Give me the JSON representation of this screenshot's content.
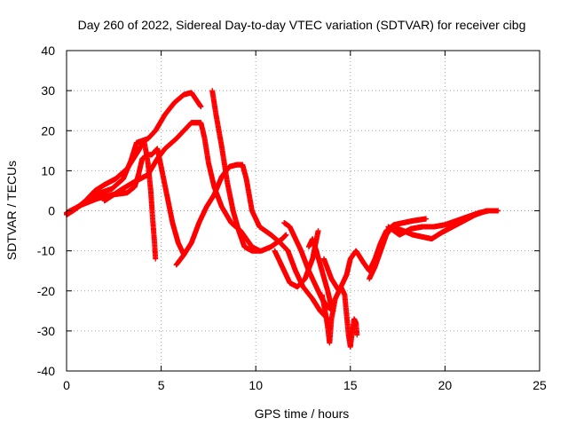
{
  "chart_data": {
    "type": "scatter",
    "title": "Day 260 of 2022, Sidereal Day-to-day VTEC variation (SDTVAR) for receiver cibg",
    "xlabel": "GPS time / hours",
    "ylabel": "SDTVAR / TECUs",
    "xlim": [
      0,
      25
    ],
    "ylim": [
      -40,
      40
    ],
    "xticks": [
      0,
      5,
      10,
      15,
      20,
      25
    ],
    "yticks": [
      -40,
      -30,
      -20,
      -10,
      0,
      10,
      20,
      30,
      40
    ],
    "grid": true,
    "grid_style": "dotted",
    "marker": "+",
    "series_color": "#ff0000",
    "series": [
      {
        "name": "track-a",
        "points": [
          [
            0.0,
            -1.0
          ],
          [
            0.5,
            0.5
          ],
          [
            1.0,
            2.5
          ],
          [
            1.5,
            5.0
          ],
          [
            2.0,
            6.5
          ],
          [
            2.6,
            8.0
          ],
          [
            3.2,
            10.5
          ],
          [
            3.8,
            15.0
          ],
          [
            4.1,
            17.5
          ],
          [
            4.3,
            12.0
          ],
          [
            4.45,
            5.0
          ],
          [
            4.55,
            -2.0
          ],
          [
            4.65,
            -8.0
          ],
          [
            4.7,
            -12.0
          ]
        ]
      },
      {
        "name": "track-b",
        "points": [
          [
            0.0,
            -0.5
          ],
          [
            0.6,
            1.0
          ],
          [
            1.2,
            3.0
          ],
          [
            1.8,
            4.5
          ],
          [
            2.4,
            5.5
          ],
          [
            3.0,
            8.0
          ],
          [
            3.4,
            12.5
          ],
          [
            3.7,
            17.0
          ],
          [
            4.0,
            17.5
          ],
          [
            4.3,
            18.0
          ],
          [
            4.7,
            20.0
          ],
          [
            5.2,
            24.0
          ],
          [
            5.7,
            27.0
          ],
          [
            6.2,
            29.0
          ],
          [
            6.6,
            29.5
          ],
          [
            7.1,
            26.0
          ]
        ]
      },
      {
        "name": "track-c",
        "points": [
          [
            0.0,
            -0.8
          ],
          [
            0.8,
            1.5
          ],
          [
            1.6,
            3.0
          ],
          [
            2.4,
            4.0
          ],
          [
            3.2,
            4.5
          ],
          [
            3.6,
            6.0
          ],
          [
            3.8,
            9.0
          ],
          [
            4.0,
            13.0
          ],
          [
            4.3,
            14.0
          ],
          [
            4.5,
            14.0
          ],
          [
            4.8,
            15.5
          ],
          [
            5.0,
            11.0
          ],
          [
            5.3,
            4.0
          ],
          [
            5.6,
            -3.0
          ],
          [
            5.9,
            -8.0
          ],
          [
            6.2,
            -11.0
          ]
        ]
      },
      {
        "name": "track-d",
        "points": [
          [
            2.0,
            2.5
          ],
          [
            2.8,
            5.0
          ],
          [
            3.5,
            7.0
          ],
          [
            4.3,
            9.0
          ],
          [
            4.8,
            13.0
          ],
          [
            5.2,
            15.5
          ],
          [
            5.8,
            18.0
          ],
          [
            6.2,
            20.0
          ],
          [
            6.6,
            22.0
          ],
          [
            6.9,
            22.0
          ],
          [
            7.1,
            22.0
          ],
          [
            7.3,
            18.0
          ],
          [
            7.5,
            12.0
          ],
          [
            7.8,
            6.0
          ],
          [
            8.2,
            1.0
          ],
          [
            8.7,
            -3.0
          ],
          [
            9.2,
            -5.0
          ],
          [
            9.8,
            -9.0
          ],
          [
            10.2,
            -10.0
          ]
        ]
      },
      {
        "name": "track-e",
        "points": [
          [
            5.8,
            -13.5
          ],
          [
            6.2,
            -11.0
          ],
          [
            6.6,
            -8.0
          ],
          [
            7.0,
            -3.0
          ],
          [
            7.4,
            1.0
          ],
          [
            7.8,
            4.0
          ],
          [
            8.2,
            8.5
          ],
          [
            8.6,
            11.0
          ],
          [
            9.0,
            11.5
          ],
          [
            9.3,
            11.5
          ],
          [
            9.5,
            8.0
          ],
          [
            9.8,
            0.0
          ],
          [
            10.2,
            -4.0
          ],
          [
            10.8,
            -6.0
          ],
          [
            11.3,
            -8.0
          ],
          [
            11.7,
            -10.0
          ],
          [
            12.1,
            -15.0
          ],
          [
            12.5,
            -19.0
          ],
          [
            13.0,
            -22.0
          ],
          [
            13.4,
            -25.0
          ],
          [
            13.8,
            -27.0
          ]
        ]
      },
      {
        "name": "track-f",
        "points": [
          [
            7.7,
            30.0
          ],
          [
            7.9,
            24.0
          ],
          [
            8.2,
            16.0
          ],
          [
            8.5,
            7.0
          ],
          [
            8.8,
            0.0
          ],
          [
            9.1,
            -5.0
          ],
          [
            9.4,
            -9.0
          ],
          [
            9.8,
            -10.0
          ],
          [
            10.3,
            -10.0
          ],
          [
            10.8,
            -9.0
          ],
          [
            11.4,
            -7.0
          ],
          [
            11.6,
            -6.0
          ]
        ]
      },
      {
        "name": "track-g",
        "points": [
          [
            11.0,
            -10.0
          ],
          [
            11.4,
            -14.0
          ],
          [
            11.8,
            -18.0
          ],
          [
            12.2,
            -19.0
          ],
          [
            12.6,
            -17.0
          ],
          [
            13.0,
            -12.0
          ],
          [
            13.3,
            -5.0
          ]
        ]
      },
      {
        "name": "track-h",
        "points": [
          [
            11.5,
            -3.0
          ],
          [
            11.8,
            -4.0
          ],
          [
            12.1,
            -7.0
          ],
          [
            12.4,
            -10.0
          ],
          [
            12.8,
            -15.0
          ],
          [
            13.2,
            -19.0
          ],
          [
            13.5,
            -22.0
          ],
          [
            13.8,
            -24.0
          ],
          [
            14.1,
            -25.0
          ]
        ]
      },
      {
        "name": "track-i",
        "points": [
          [
            13.5,
            -21.0
          ],
          [
            13.7,
            -26.0
          ],
          [
            13.8,
            -29.0
          ],
          [
            13.9,
            -33.0
          ],
          [
            14.0,
            -27.0
          ],
          [
            14.2,
            -22.0
          ],
          [
            14.5,
            -19.0
          ],
          [
            14.7,
            -21.0
          ],
          [
            14.8,
            -26.0
          ],
          [
            14.9,
            -31.0
          ],
          [
            15.0,
            -34.0
          ],
          [
            15.1,
            -30.0
          ],
          [
            15.2,
            -27.0
          ],
          [
            15.3,
            -28.0
          ],
          [
            15.35,
            -31.0
          ]
        ]
      },
      {
        "name": "track-j",
        "points": [
          [
            13.6,
            -12.0
          ],
          [
            14.0,
            -17.0
          ],
          [
            14.4,
            -20.0
          ],
          [
            14.8,
            -16.0
          ],
          [
            15.0,
            -12.0
          ],
          [
            15.3,
            -10.0
          ],
          [
            15.7,
            -13.0
          ],
          [
            16.0,
            -15.0
          ],
          [
            16.3,
            -12.0
          ],
          [
            16.6,
            -8.0
          ],
          [
            16.9,
            -5.0
          ],
          [
            17.3,
            -3.5
          ],
          [
            17.8,
            -3.0
          ],
          [
            18.3,
            -2.5
          ],
          [
            19.0,
            -2.0
          ]
        ]
      },
      {
        "name": "track-k",
        "points": [
          [
            16.0,
            -17.0
          ],
          [
            16.3,
            -14.0
          ],
          [
            16.6,
            -10.0
          ],
          [
            16.9,
            -6.0
          ],
          [
            17.2,
            -4.0
          ],
          [
            17.8,
            -5.0
          ],
          [
            18.3,
            -6.0
          ],
          [
            18.8,
            -6.5
          ],
          [
            19.3,
            -7.0
          ],
          [
            19.8,
            -5.5
          ],
          [
            20.4,
            -4.0
          ],
          [
            21.0,
            -2.5
          ],
          [
            21.6,
            -1.0
          ],
          [
            22.2,
            0.0
          ],
          [
            22.8,
            0.0
          ]
        ]
      },
      {
        "name": "track-l",
        "points": [
          [
            17.0,
            -4.0
          ],
          [
            17.6,
            -6.0
          ],
          [
            18.2,
            -4.5
          ],
          [
            18.8,
            -4.0
          ],
          [
            19.4,
            -4.0
          ],
          [
            20.0,
            -3.5
          ],
          [
            20.6,
            -2.5
          ],
          [
            21.2,
            -1.5
          ],
          [
            21.8,
            -0.5
          ],
          [
            22.3,
            0.0
          ],
          [
            22.8,
            0.0
          ]
        ]
      },
      {
        "name": "track-m",
        "points": [
          [
            12.8,
            -9.0
          ],
          [
            13.0,
            -7.0
          ],
          [
            13.2,
            -10.0
          ],
          [
            13.5,
            -15.0
          ],
          [
            13.8,
            -20.0
          ],
          [
            14.0,
            -24.0
          ]
        ]
      }
    ]
  }
}
